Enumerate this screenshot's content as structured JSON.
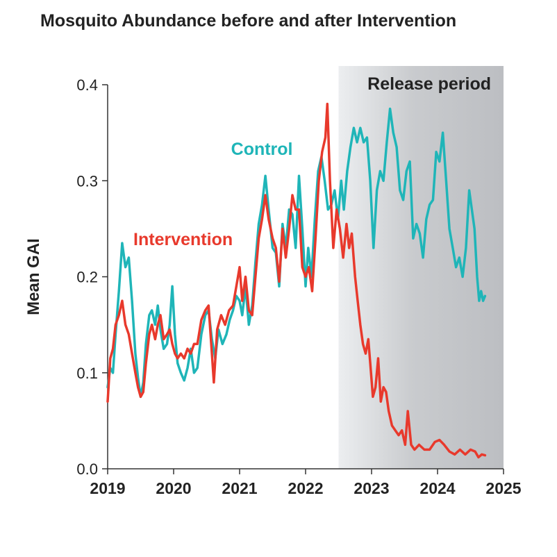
{
  "chart_data": {
    "type": "line",
    "title": "Mosquito Abundance before and after Intervention",
    "xlabel": "",
    "ylabel": "Mean GAI",
    "xlim": [
      2019,
      2025
    ],
    "ylim": [
      0.0,
      0.4
    ],
    "x_ticks": [
      "2019",
      "2020",
      "2021",
      "2022",
      "2023",
      "2024",
      "2025"
    ],
    "y_ticks": [
      "0.0",
      "0.1",
      "0.2",
      "0.3",
      "0.4"
    ],
    "grid": false,
    "legend": "inline labels",
    "annotations": [
      {
        "text": "Release period",
        "x_start": 2022.5,
        "x_end": 2025.0
      }
    ],
    "series": [
      {
        "name": "Control",
        "color": "#1fb5b8",
        "points": [
          [
            2019.0,
            0.085
          ],
          [
            2019.04,
            0.105
          ],
          [
            2019.08,
            0.1
          ],
          [
            2019.12,
            0.14
          ],
          [
            2019.17,
            0.185
          ],
          [
            2019.22,
            0.235
          ],
          [
            2019.27,
            0.21
          ],
          [
            2019.32,
            0.22
          ],
          [
            2019.37,
            0.175
          ],
          [
            2019.42,
            0.12
          ],
          [
            2019.46,
            0.095
          ],
          [
            2019.5,
            0.075
          ],
          [
            2019.54,
            0.09
          ],
          [
            2019.58,
            0.13
          ],
          [
            2019.63,
            0.16
          ],
          [
            2019.67,
            0.165
          ],
          [
            2019.72,
            0.15
          ],
          [
            2019.76,
            0.17
          ],
          [
            2019.8,
            0.145
          ],
          [
            2019.85,
            0.125
          ],
          [
            2019.9,
            0.13
          ],
          [
            2019.94,
            0.15
          ],
          [
            2019.98,
            0.19
          ],
          [
            2020.02,
            0.14
          ],
          [
            2020.06,
            0.11
          ],
          [
            2020.11,
            0.1
          ],
          [
            2020.16,
            0.092
          ],
          [
            2020.21,
            0.105
          ],
          [
            2020.26,
            0.125
          ],
          [
            2020.31,
            0.1
          ],
          [
            2020.36,
            0.105
          ],
          [
            2020.42,
            0.14
          ],
          [
            2020.48,
            0.16
          ],
          [
            2020.53,
            0.165
          ],
          [
            2020.58,
            0.135
          ],
          [
            2020.63,
            0.115
          ],
          [
            2020.68,
            0.145
          ],
          [
            2020.74,
            0.13
          ],
          [
            2020.8,
            0.14
          ],
          [
            2020.85,
            0.155
          ],
          [
            2020.9,
            0.165
          ],
          [
            2020.95,
            0.18
          ],
          [
            2021.0,
            0.175
          ],
          [
            2021.04,
            0.16
          ],
          [
            2021.09,
            0.19
          ],
          [
            2021.14,
            0.15
          ],
          [
            2021.19,
            0.17
          ],
          [
            2021.24,
            0.215
          ],
          [
            2021.29,
            0.255
          ],
          [
            2021.34,
            0.275
          ],
          [
            2021.39,
            0.305
          ],
          [
            2021.44,
            0.27
          ],
          [
            2021.5,
            0.23
          ],
          [
            2021.55,
            0.225
          ],
          [
            2021.6,
            0.19
          ],
          [
            2021.65,
            0.255
          ],
          [
            2021.7,
            0.23
          ],
          [
            2021.75,
            0.27
          ],
          [
            2021.8,
            0.265
          ],
          [
            2021.85,
            0.23
          ],
          [
            2021.9,
            0.305
          ],
          [
            2021.95,
            0.25
          ],
          [
            2022.0,
            0.19
          ],
          [
            2022.04,
            0.23
          ],
          [
            2022.09,
            0.2
          ],
          [
            2022.14,
            0.26
          ],
          [
            2022.19,
            0.31
          ],
          [
            2022.24,
            0.325
          ],
          [
            2022.29,
            0.3
          ],
          [
            2022.34,
            0.27
          ],
          [
            2022.39,
            0.275
          ],
          [
            2022.44,
            0.29
          ],
          [
            2022.49,
            0.26
          ],
          [
            2022.54,
            0.3
          ],
          [
            2022.58,
            0.27
          ],
          [
            2022.63,
            0.31
          ],
          [
            2022.68,
            0.335
          ],
          [
            2022.73,
            0.355
          ],
          [
            2022.78,
            0.34
          ],
          [
            2022.83,
            0.355
          ],
          [
            2022.88,
            0.34
          ],
          [
            2022.93,
            0.345
          ],
          [
            2022.98,
            0.3
          ],
          [
            2023.03,
            0.23
          ],
          [
            2023.08,
            0.29
          ],
          [
            2023.13,
            0.31
          ],
          [
            2023.18,
            0.3
          ],
          [
            2023.23,
            0.34
          ],
          [
            2023.28,
            0.375
          ],
          [
            2023.33,
            0.35
          ],
          [
            2023.38,
            0.335
          ],
          [
            2023.43,
            0.29
          ],
          [
            2023.48,
            0.28
          ],
          [
            2023.53,
            0.31
          ],
          [
            2023.58,
            0.32
          ],
          [
            2023.63,
            0.24
          ],
          [
            2023.68,
            0.255
          ],
          [
            2023.73,
            0.245
          ],
          [
            2023.78,
            0.22
          ],
          [
            2023.83,
            0.26
          ],
          [
            2023.88,
            0.275
          ],
          [
            2023.93,
            0.28
          ],
          [
            2023.98,
            0.33
          ],
          [
            2024.03,
            0.32
          ],
          [
            2024.08,
            0.35
          ],
          [
            2024.13,
            0.3
          ],
          [
            2024.18,
            0.25
          ],
          [
            2024.23,
            0.23
          ],
          [
            2024.28,
            0.21
          ],
          [
            2024.33,
            0.22
          ],
          [
            2024.38,
            0.2
          ],
          [
            2024.43,
            0.23
          ],
          [
            2024.48,
            0.29
          ],
          [
            2024.52,
            0.27
          ],
          [
            2024.56,
            0.25
          ],
          [
            2024.6,
            0.2
          ],
          [
            2024.63,
            0.175
          ],
          [
            2024.66,
            0.185
          ],
          [
            2024.69,
            0.175
          ],
          [
            2024.72,
            0.18
          ]
        ]
      },
      {
        "name": "Intervention",
        "color": "#e8392c",
        "points": [
          [
            2019.0,
            0.07
          ],
          [
            2019.04,
            0.115
          ],
          [
            2019.08,
            0.125
          ],
          [
            2019.12,
            0.15
          ],
          [
            2019.17,
            0.16
          ],
          [
            2019.22,
            0.175
          ],
          [
            2019.27,
            0.15
          ],
          [
            2019.32,
            0.14
          ],
          [
            2019.37,
            0.12
          ],
          [
            2019.42,
            0.1
          ],
          [
            2019.46,
            0.085
          ],
          [
            2019.5,
            0.075
          ],
          [
            2019.54,
            0.08
          ],
          [
            2019.58,
            0.11
          ],
          [
            2019.63,
            0.14
          ],
          [
            2019.67,
            0.15
          ],
          [
            2019.72,
            0.135
          ],
          [
            2019.76,
            0.15
          ],
          [
            2019.8,
            0.16
          ],
          [
            2019.85,
            0.135
          ],
          [
            2019.9,
            0.14
          ],
          [
            2019.94,
            0.145
          ],
          [
            2019.98,
            0.13
          ],
          [
            2020.02,
            0.12
          ],
          [
            2020.06,
            0.115
          ],
          [
            2020.11,
            0.12
          ],
          [
            2020.16,
            0.115
          ],
          [
            2020.21,
            0.125
          ],
          [
            2020.26,
            0.12
          ],
          [
            2020.31,
            0.13
          ],
          [
            2020.36,
            0.13
          ],
          [
            2020.42,
            0.155
          ],
          [
            2020.48,
            0.165
          ],
          [
            2020.53,
            0.17
          ],
          [
            2020.58,
            0.12
          ],
          [
            2020.61,
            0.09
          ],
          [
            2020.66,
            0.145
          ],
          [
            2020.72,
            0.16
          ],
          [
            2020.78,
            0.15
          ],
          [
            2020.84,
            0.165
          ],
          [
            2020.9,
            0.17
          ],
          [
            2020.95,
            0.19
          ],
          [
            2021.0,
            0.21
          ],
          [
            2021.04,
            0.175
          ],
          [
            2021.09,
            0.2
          ],
          [
            2021.14,
            0.165
          ],
          [
            2021.19,
            0.16
          ],
          [
            2021.24,
            0.2
          ],
          [
            2021.29,
            0.24
          ],
          [
            2021.34,
            0.26
          ],
          [
            2021.39,
            0.285
          ],
          [
            2021.44,
            0.26
          ],
          [
            2021.5,
            0.24
          ],
          [
            2021.55,
            0.23
          ],
          [
            2021.6,
            0.195
          ],
          [
            2021.65,
            0.25
          ],
          [
            2021.7,
            0.22
          ],
          [
            2021.75,
            0.25
          ],
          [
            2021.8,
            0.285
          ],
          [
            2021.85,
            0.27
          ],
          [
            2021.9,
            0.27
          ],
          [
            2021.95,
            0.21
          ],
          [
            2022.0,
            0.2
          ],
          [
            2022.05,
            0.21
          ],
          [
            2022.1,
            0.185
          ],
          [
            2022.15,
            0.24
          ],
          [
            2022.2,
            0.3
          ],
          [
            2022.25,
            0.33
          ],
          [
            2022.3,
            0.345
          ],
          [
            2022.33,
            0.38
          ],
          [
            2022.37,
            0.3
          ],
          [
            2022.42,
            0.23
          ],
          [
            2022.47,
            0.27
          ],
          [
            2022.52,
            0.25
          ],
          [
            2022.57,
            0.22
          ],
          [
            2022.62,
            0.255
          ],
          [
            2022.66,
            0.23
          ],
          [
            2022.7,
            0.245
          ],
          [
            2022.75,
            0.2
          ],
          [
            2022.79,
            0.175
          ],
          [
            2022.83,
            0.15
          ],
          [
            2022.87,
            0.13
          ],
          [
            2022.91,
            0.12
          ],
          [
            2022.95,
            0.135
          ],
          [
            2022.98,
            0.11
          ],
          [
            2023.02,
            0.075
          ],
          [
            2023.06,
            0.085
          ],
          [
            2023.1,
            0.115
          ],
          [
            2023.14,
            0.07
          ],
          [
            2023.18,
            0.085
          ],
          [
            2023.22,
            0.08
          ],
          [
            2023.26,
            0.06
          ],
          [
            2023.31,
            0.045
          ],
          [
            2023.36,
            0.04
          ],
          [
            2023.41,
            0.035
          ],
          [
            2023.46,
            0.04
          ],
          [
            2023.51,
            0.025
          ],
          [
            2023.55,
            0.06
          ],
          [
            2023.6,
            0.025
          ],
          [
            2023.65,
            0.02
          ],
          [
            2023.72,
            0.025
          ],
          [
            2023.8,
            0.02
          ],
          [
            2023.88,
            0.02
          ],
          [
            2023.96,
            0.028
          ],
          [
            2024.03,
            0.03
          ],
          [
            2024.1,
            0.025
          ],
          [
            2024.18,
            0.018
          ],
          [
            2024.26,
            0.015
          ],
          [
            2024.34,
            0.02
          ],
          [
            2024.42,
            0.015
          ],
          [
            2024.5,
            0.02
          ],
          [
            2024.57,
            0.018
          ],
          [
            2024.62,
            0.012
          ],
          [
            2024.67,
            0.015
          ],
          [
            2024.72,
            0.014
          ]
        ]
      }
    ]
  }
}
